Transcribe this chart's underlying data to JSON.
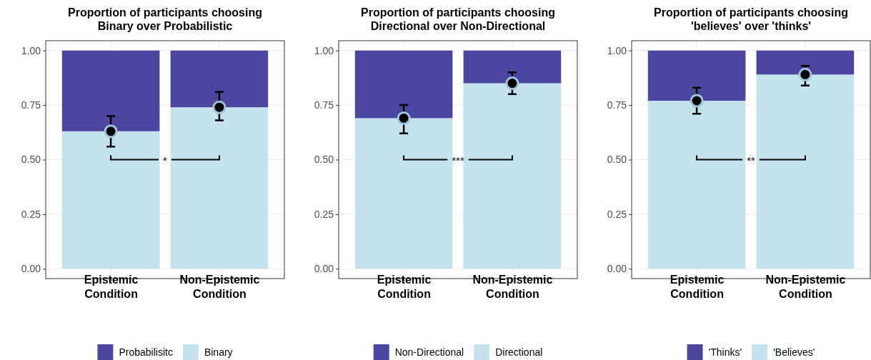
{
  "chart_data": [
    {
      "type": "bar",
      "title": "Proportion of participants choosing\nBinary over Probabilistic",
      "categories": [
        "Epistemic Condition",
        "Non-Epistemic Condition"
      ],
      "stacked": true,
      "ylim": [
        -0.045,
        1.045
      ],
      "yticks": [
        {
          "value": 0,
          "label": "0.00"
        },
        {
          "value": 0.25,
          "label": "0.25"
        },
        {
          "value": 0.5,
          "label": "0.50"
        },
        {
          "value": 0.75,
          "label": "0.75"
        },
        {
          "value": 1,
          "label": "1.00"
        }
      ],
      "grid": true,
      "legend": "bottom",
      "annotations": [
        "*"
      ],
      "series": [
        {
          "name": "Binary",
          "color": "#c5e3ec",
          "values": [
            0.63,
            0.74
          ]
        },
        {
          "name": "Probabilisitc",
          "color": "#4b47a0",
          "values": [
            0.37,
            0.26
          ]
        },
        {
          "type": "scatter",
          "color": "#000000",
          "x": [
            "Epistemic Condition",
            "Non-Epistemic Condition"
          ],
          "values": [
            0.63,
            0.74
          ],
          "errors": [
            [
              0.56,
              0.7
            ],
            [
              0.68,
              0.81
            ]
          ]
        }
      ]
    },
    {
      "type": "bar",
      "title": "Proportion of participants choosing\nDirectional over Non-Directional",
      "categories": [
        "Epistemic Condition",
        "Non-Epistemic Condition"
      ],
      "stacked": true,
      "ylim": [
        -0.045,
        1.045
      ],
      "yticks": [
        {
          "value": 0,
          "label": "0.00"
        },
        {
          "value": 0.25,
          "label": "0.25"
        },
        {
          "value": 0.5,
          "label": "0.50"
        },
        {
          "value": 0.75,
          "label": "0.75"
        },
        {
          "value": 1,
          "label": "1.00"
        }
      ],
      "grid": true,
      "legend": "bottom",
      "annotations": [
        "***"
      ],
      "series": [
        {
          "name": "Directional",
          "color": "#c5e3ec",
          "values": [
            0.69,
            0.85
          ]
        },
        {
          "name": "Non-Directional",
          "color": "#4b47a0",
          "values": [
            0.31,
            0.15
          ]
        },
        {
          "type": "scatter",
          "color": "#000000",
          "x": [
            "Epistemic Condition",
            "Non-Epistemic Condition"
          ],
          "values": [
            0.69,
            0.85
          ],
          "errors": [
            [
              0.62,
              0.75
            ],
            [
              0.8,
              0.9
            ]
          ]
        }
      ]
    },
    {
      "type": "bar",
      "title": "Proportion of participants choosing\n'believes' over 'thinks'",
      "categories": [
        "Epistemic Condition",
        "Non-Epistemic Condition"
      ],
      "stacked": true,
      "ylim": [
        -0.045,
        1.045
      ],
      "yticks": [
        {
          "value": 0,
          "label": "0.00"
        },
        {
          "value": 0.25,
          "label": "0.25"
        },
        {
          "value": 0.5,
          "label": "0.50"
        },
        {
          "value": 0.75,
          "label": "0.75"
        },
        {
          "value": 1,
          "label": "1.00"
        }
      ],
      "grid": true,
      "legend": "bottom",
      "annotations": [
        "**"
      ],
      "series": [
        {
          "name": "'Believes'",
          "color": "#c5e3ec",
          "values": [
            0.77,
            0.89
          ]
        },
        {
          "name": "'Thinks'",
          "color": "#4b47a0",
          "values": [
            0.23,
            0.11
          ]
        },
        {
          "type": "scatter",
          "color": "#000000",
          "x": [
            "Epistemic Condition",
            "Non-Epistemic Condition"
          ],
          "values": [
            0.77,
            0.89
          ],
          "errors": [
            [
              0.71,
              0.83
            ],
            [
              0.84,
              0.93
            ]
          ]
        }
      ]
    }
  ]
}
